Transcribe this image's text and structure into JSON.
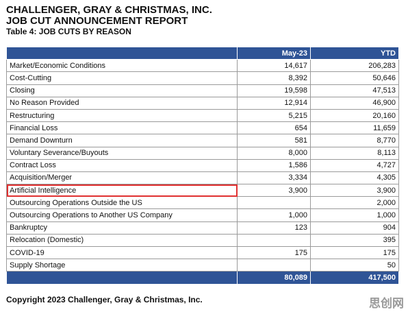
{
  "header": {
    "company": "CHALLENGER, GRAY & CHRISTMAS, INC.",
    "report": "JOB CUT ANNOUNCEMENT REPORT",
    "subtitle": "Table 4: JOB CUTS BY REASON"
  },
  "table": {
    "columns": [
      null,
      "May-23",
      "YTD"
    ],
    "rows": [
      [
        "Market/Economic Conditions",
        "14,617",
        "206,283"
      ],
      [
        "Cost-Cutting",
        "8,392",
        "50,646"
      ],
      [
        "Closing",
        "19,598",
        "47,513"
      ],
      [
        "No Reason Provided",
        "12,914",
        "46,900"
      ],
      [
        "Restructuring",
        "5,215",
        "20,160"
      ],
      [
        "Financial Loss",
        "654",
        "11,659"
      ],
      [
        "Demand Downturn",
        "581",
        "8,770"
      ],
      [
        "Voluntary Severance/Buyouts",
        "8,000",
        "8,113"
      ],
      [
        "Contract Loss",
        "1,586",
        "4,727"
      ],
      [
        "Acquisition/Merger",
        "3,334",
        "4,305"
      ],
      [
        "Artificial Intelligence",
        "3,900",
        "3,900"
      ],
      [
        "Outsourcing Operations Outside the US",
        null,
        "2,000"
      ],
      [
        "Outsourcing Operations to Another US Company",
        "1,000",
        "1,000"
      ],
      [
        "Bankruptcy",
        "123",
        "904"
      ],
      [
        "Relocation (Domestic)",
        null,
        "395"
      ],
      [
        "COVID-19",
        "175",
        "175"
      ],
      [
        "Supply Shortage",
        null,
        "50"
      ]
    ],
    "total": [
      null,
      "80,089",
      "417,500"
    ],
    "highlighted_row": 10
  },
  "footer": {
    "copyright": "Copyright 2023 Challenger, Gray & Christmas, Inc.",
    "watermark": "思创网"
  }
}
